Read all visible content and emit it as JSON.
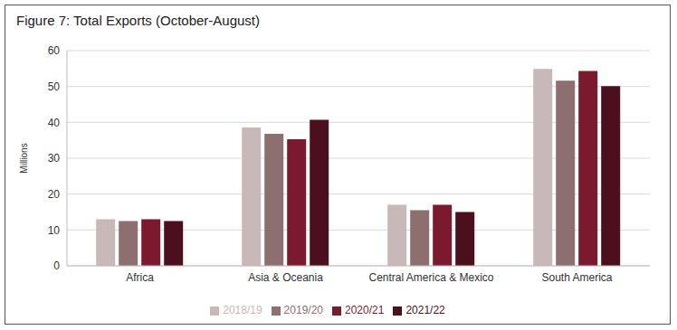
{
  "chart_data": {
    "type": "bar",
    "title": "Figure 7: Total Exports (October-August)",
    "y_label": "Millions",
    "categories": [
      "Africa",
      "Asia & Oceania",
      "Central America & Mexico",
      "South America"
    ],
    "series": [
      {
        "name": "2018/19",
        "color": "#c8b8b7",
        "values": [
          13,
          38.6,
          17,
          54.9
        ]
      },
      {
        "name": "2019/20",
        "color": "#8e6f70",
        "values": [
          12.5,
          36.8,
          15.5,
          51.6
        ]
      },
      {
        "name": "2020/21",
        "color": "#7b1a2e",
        "values": [
          13,
          35.3,
          17,
          54.3
        ]
      },
      {
        "name": "2021/22",
        "color": "#4b0f1e",
        "values": [
          12.5,
          40.7,
          15,
          50.1
        ]
      }
    ],
    "ylim": [
      0,
      60
    ],
    "yticks": [
      0,
      10,
      20,
      30,
      40,
      50,
      60
    ],
    "grid": true,
    "legend": "bottom"
  }
}
